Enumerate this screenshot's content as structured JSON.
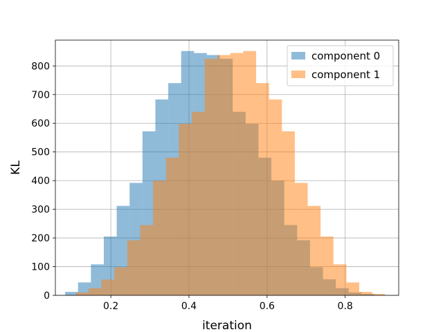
{
  "chart_data": {
    "type": "histogram",
    "xlabel": "iteration",
    "ylabel": "KL",
    "xlim": [
      0.058,
      0.937
    ],
    "ylim": [
      0,
      890
    ],
    "xticks": [
      0.2,
      0.4,
      0.6,
      0.8
    ],
    "xtick_labels": [
      "0.2",
      "0.4",
      "0.6",
      "0.8"
    ],
    "yticks": [
      0,
      100,
      200,
      300,
      400,
      500,
      600,
      700,
      800
    ],
    "ytick_labels": [
      "0",
      "100",
      "200",
      "300",
      "400",
      "500",
      "600",
      "700",
      "800"
    ],
    "grid": true,
    "legend_position": "upper right",
    "series": [
      {
        "name": "component 0",
        "color": "#1f77b4",
        "alpha": 0.5,
        "bin_edges": [
          0.083,
          0.116,
          0.149,
          0.182,
          0.215,
          0.248,
          0.281,
          0.314,
          0.347,
          0.38,
          0.413,
          0.446,
          0.479,
          0.512,
          0.545,
          0.578,
          0.611,
          0.644,
          0.677,
          0.71,
          0.743,
          0.776,
          0.809,
          0.842,
          0.875
        ],
        "counts": [
          12,
          45,
          108,
          205,
          312,
          392,
          572,
          683,
          740,
          852,
          845,
          838,
          825,
          640,
          598,
          480,
          400,
          245,
          192,
          98,
          56,
          25,
          10,
          5
        ]
      },
      {
        "name": "component 1",
        "color": "#ff7f0e",
        "alpha": 0.5,
        "bin_edges": [
          0.11,
          0.143,
          0.176,
          0.209,
          0.242,
          0.275,
          0.308,
          0.341,
          0.374,
          0.407,
          0.44,
          0.473,
          0.506,
          0.539,
          0.572,
          0.605,
          0.638,
          0.671,
          0.704,
          0.737,
          0.77,
          0.803,
          0.836,
          0.869,
          0.902
        ],
        "counts": [
          10,
          25,
          55,
          98,
          192,
          245,
          400,
          480,
          598,
          640,
          825,
          838,
          845,
          852,
          740,
          683,
          572,
          392,
          312,
          205,
          108,
          45,
          12,
          5
        ]
      }
    ]
  }
}
